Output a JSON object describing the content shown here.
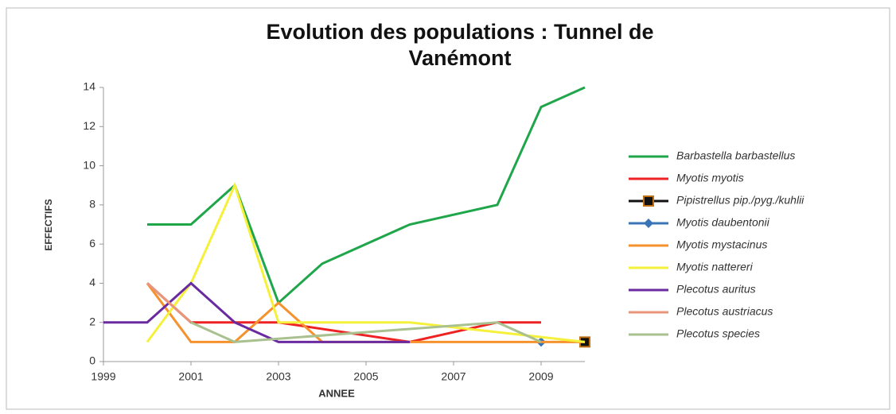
{
  "chart_data": {
    "type": "line",
    "title": [
      "Evolution des populations : Tunnel de",
      "Vanémont"
    ],
    "x_label": "ANNEE",
    "y_label": "EFFECTIFS",
    "xlim": [
      1999,
      2010
    ],
    "xticks": [
      1999,
      2001,
      2003,
      2005,
      2007,
      2009
    ],
    "ylim": [
      0,
      14
    ],
    "yticks": [
      0,
      2,
      4,
      6,
      8,
      10,
      12,
      14
    ],
    "grid": false,
    "legend": "right",
    "series": [
      {
        "name": "Barbastella barbastellus",
        "color": "#1fa64a",
        "x": [
          2000,
          2001,
          2002,
          2003,
          2004,
          2006,
          2008,
          2009,
          2010
        ],
        "values": [
          7,
          7,
          9,
          3,
          5,
          7,
          8,
          13,
          14
        ]
      },
      {
        "name": "Myotis myotis",
        "color": "#ee2222",
        "x": [
          2000,
          2001,
          2003,
          2006,
          2008,
          2009
        ],
        "values": [
          4,
          2,
          2,
          1,
          2,
          2
        ]
      },
      {
        "name": "Pipistrellus pip./pyg./kuhlii",
        "color": "#111111",
        "marker": "square",
        "x": [
          2010
        ],
        "values": [
          1
        ]
      },
      {
        "name": "Myotis daubentonii",
        "color": "#3a74b8",
        "marker": "diamond",
        "x": [
          2009
        ],
        "values": [
          1
        ]
      },
      {
        "name": "Myotis mystacinus",
        "color": "#f5922e",
        "x": [
          2000,
          2001,
          2002,
          2003,
          2004,
          2010
        ],
        "values": [
          4,
          1,
          1,
          3,
          1,
          1
        ]
      },
      {
        "name": "Myotis nattereri",
        "color": "#f5f03a",
        "x": [
          2000,
          2001,
          2002,
          2003,
          2006,
          2010
        ],
        "values": [
          1,
          4,
          9,
          2,
          2,
          1
        ]
      },
      {
        "name": "Plecotus auritus",
        "color": "#6a2aa0",
        "x": [
          1999,
          2000,
          2001,
          2002,
          2003,
          2006
        ],
        "values": [
          2,
          2,
          4,
          2,
          1,
          1
        ]
      },
      {
        "name": "Plecotus austriacus",
        "color": "#e8957a",
        "x": [
          2000,
          2001
        ],
        "values": [
          4,
          2
        ]
      },
      {
        "name": "Plecotus species",
        "color": "#a9c08f",
        "x": [
          2001,
          2002,
          2008,
          2009
        ],
        "values": [
          2,
          1,
          2,
          1
        ]
      }
    ]
  }
}
